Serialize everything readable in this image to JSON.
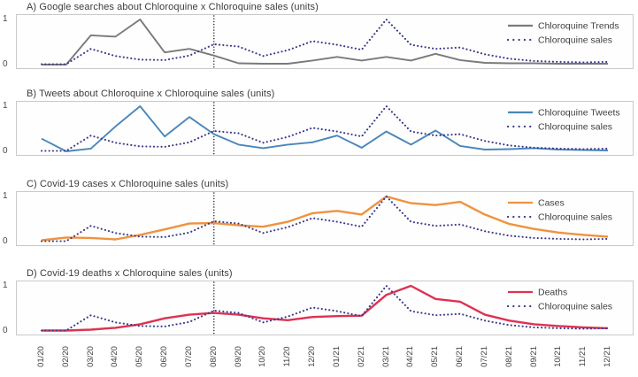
{
  "figure": {
    "background": "#ffffff",
    "plot_fill": "#fefefe",
    "axis_border_color": "#c9c9c9",
    "title_color": "#3c3c3c",
    "tick_label_color": "#444444",
    "legend_text_color": "#3f3f3f",
    "vline_color": "#1a1a1a",
    "vline_at": "08/20"
  },
  "chart_data": [
    {
      "type": "line",
      "title": "A) Google searches about Chloroquine x Chloroquine sales (units)",
      "categories": [
        "01/20",
        "02/20",
        "03/20",
        "04/20",
        "05/20",
        "06/20",
        "07/20",
        "08/20",
        "09/20",
        "10/20",
        "11/20",
        "12/20",
        "01/21",
        "02/21",
        "03/21",
        "04/21",
        "05/21",
        "06/21",
        "07/21",
        "08/21",
        "09/21",
        "10/21",
        "11/21",
        "12/21"
      ],
      "ylim": [
        0,
        1
      ],
      "yticks": [
        "0",
        "1"
      ],
      "grid": false,
      "legend_position": "right-inside",
      "vline_x": "08/20",
      "series": [
        {
          "name": "Chloroquine Trends",
          "color": "#7a7a7a",
          "style": "solid",
          "values": [
            0.0,
            0.0,
            0.65,
            0.62,
            1.0,
            0.27,
            0.35,
            0.2,
            0.03,
            0.02,
            0.02,
            0.09,
            0.17,
            0.09,
            0.17,
            0.09,
            0.24,
            0.1,
            0.04,
            0.03,
            0.03,
            0.02,
            0.02,
            0.02
          ]
        },
        {
          "name": "Chloroquine sales",
          "color": "#3a3a8c",
          "style": "dotted",
          "values": [
            0.01,
            0.01,
            0.35,
            0.19,
            0.11,
            0.1,
            0.2,
            0.45,
            0.4,
            0.19,
            0.32,
            0.52,
            0.44,
            0.33,
            1.0,
            0.44,
            0.35,
            0.38,
            0.23,
            0.13,
            0.08,
            0.06,
            0.05,
            0.06
          ]
        }
      ]
    },
    {
      "type": "line",
      "title": "B) Tweets about Chloroquine x Chloroquine sales (units)",
      "categories": [
        "01/20",
        "02/20",
        "03/20",
        "04/20",
        "05/20",
        "06/20",
        "07/20",
        "08/20",
        "09/20",
        "10/20",
        "11/20",
        "12/20",
        "01/21",
        "02/21",
        "03/21",
        "04/21",
        "05/21",
        "06/21",
        "07/21",
        "08/21",
        "09/21",
        "10/21",
        "11/21",
        "12/21"
      ],
      "ylim": [
        0,
        1
      ],
      "yticks": [
        "0",
        "1"
      ],
      "grid": false,
      "legend_position": "right-inside",
      "vline_x": "08/20",
      "series": [
        {
          "name": "Chloroquine Tweets",
          "color": "#4a86bb",
          "style": "solid",
          "values": [
            0.28,
            0.0,
            0.06,
            0.55,
            1.0,
            0.33,
            0.76,
            0.38,
            0.15,
            0.07,
            0.15,
            0.2,
            0.35,
            0.08,
            0.44,
            0.15,
            0.46,
            0.12,
            0.04,
            0.05,
            0.07,
            0.04,
            0.03,
            0.02
          ]
        },
        {
          "name": "Chloroquine sales",
          "color": "#3a3a8c",
          "style": "dotted",
          "values": [
            0.01,
            0.01,
            0.35,
            0.19,
            0.11,
            0.1,
            0.2,
            0.45,
            0.4,
            0.19,
            0.32,
            0.52,
            0.44,
            0.33,
            1.0,
            0.44,
            0.35,
            0.38,
            0.23,
            0.13,
            0.08,
            0.06,
            0.05,
            0.06
          ]
        }
      ]
    },
    {
      "type": "line",
      "title": "C) Covid-19 cases x Chloroquine sales (units)",
      "categories": [
        "01/20",
        "02/20",
        "03/20",
        "04/20",
        "05/20",
        "06/20",
        "07/20",
        "08/20",
        "09/20",
        "10/20",
        "11/20",
        "12/20",
        "01/21",
        "02/21",
        "03/21",
        "04/21",
        "05/21",
        "06/21",
        "07/21",
        "08/21",
        "09/21",
        "10/21",
        "11/21",
        "12/21"
      ],
      "ylim": [
        0,
        1
      ],
      "yticks": [
        "0",
        "1"
      ],
      "grid": false,
      "legend_position": "right-inside",
      "vline_x": "08/20",
      "series": [
        {
          "name": "Cases",
          "color": "#f0923f",
          "style": "solid",
          "values": [
            0.03,
            0.09,
            0.08,
            0.05,
            0.15,
            0.27,
            0.4,
            0.41,
            0.36,
            0.33,
            0.44,
            0.63,
            0.68,
            0.6,
            1.0,
            0.85,
            0.81,
            0.88,
            0.6,
            0.39,
            0.28,
            0.2,
            0.15,
            0.11
          ]
        },
        {
          "name": "Chloroquine sales",
          "color": "#3a3a8c",
          "style": "dotted",
          "values": [
            0.01,
            0.01,
            0.35,
            0.19,
            0.11,
            0.1,
            0.2,
            0.45,
            0.4,
            0.19,
            0.32,
            0.52,
            0.44,
            0.33,
            1.0,
            0.44,
            0.35,
            0.38,
            0.23,
            0.13,
            0.08,
            0.06,
            0.05,
            0.06
          ]
        }
      ]
    },
    {
      "type": "line",
      "title": "D) Covid-19 deaths x Chloroquine sales (units)",
      "categories": [
        "01/20",
        "02/20",
        "03/20",
        "04/20",
        "05/20",
        "06/20",
        "07/20",
        "08/20",
        "09/20",
        "10/20",
        "11/20",
        "12/20",
        "01/21",
        "02/21",
        "03/21",
        "04/21",
        "05/21",
        "06/21",
        "07/21",
        "08/21",
        "09/21",
        "10/21",
        "11/21",
        "12/21"
      ],
      "ylim": [
        0,
        1
      ],
      "yticks": [
        "0",
        "1"
      ],
      "grid": false,
      "legend_position": "right-inside",
      "vline_x": "08/20",
      "series": [
        {
          "name": "Deaths",
          "color": "#dd3253",
          "style": "solid",
          "values": [
            0.01,
            0.01,
            0.03,
            0.07,
            0.15,
            0.28,
            0.36,
            0.4,
            0.36,
            0.28,
            0.24,
            0.31,
            0.33,
            0.34,
            0.8,
            1.0,
            0.71,
            0.65,
            0.36,
            0.23,
            0.15,
            0.11,
            0.08,
            0.06
          ]
        },
        {
          "name": "Chloroquine sales",
          "color": "#3a3a8c",
          "style": "dotted",
          "values": [
            0.01,
            0.01,
            0.35,
            0.19,
            0.11,
            0.1,
            0.2,
            0.45,
            0.4,
            0.19,
            0.32,
            0.52,
            0.44,
            0.33,
            1.0,
            0.44,
            0.35,
            0.38,
            0.23,
            0.13,
            0.08,
            0.06,
            0.05,
            0.06
          ]
        }
      ]
    }
  ]
}
